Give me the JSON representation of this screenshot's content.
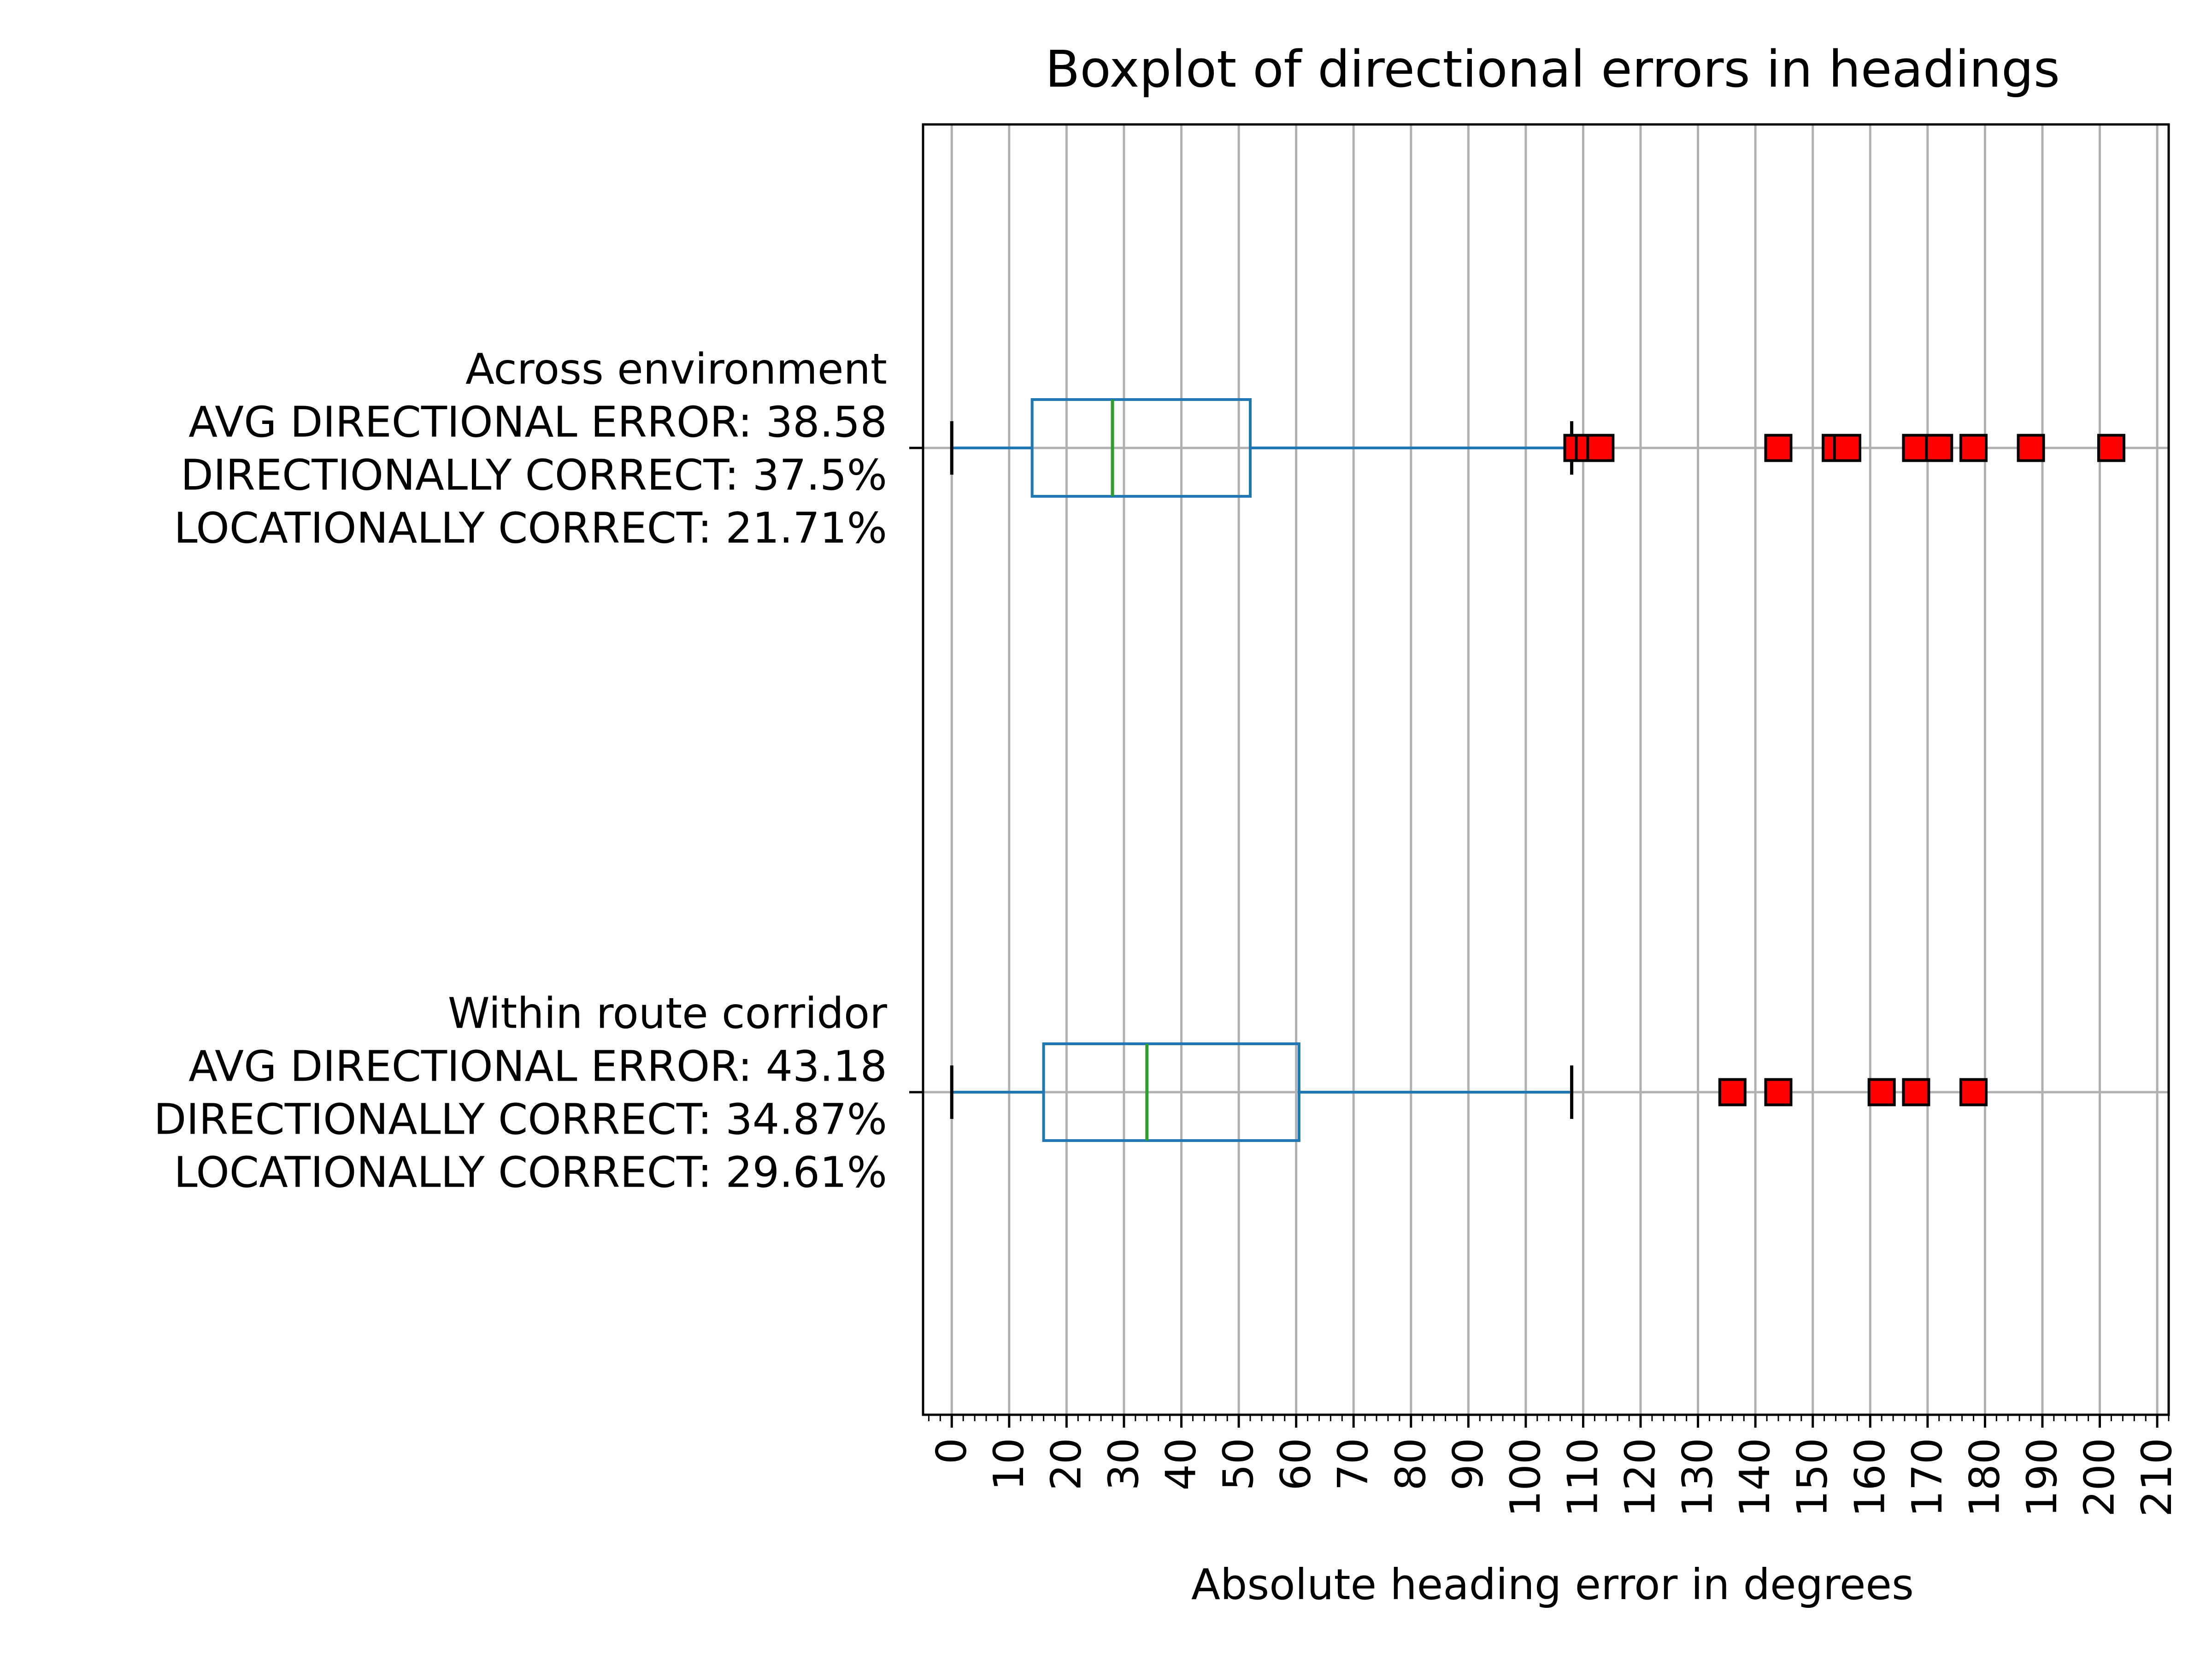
{
  "chart_data": {
    "type": "boxplot",
    "orientation": "horizontal",
    "title": "Boxplot of directional errors in headings",
    "xlabel": "Absolute heading error in degrees",
    "ylabel": "",
    "xlim": [
      -5,
      212
    ],
    "x_ticks": [
      0,
      10,
      20,
      30,
      40,
      50,
      60,
      70,
      80,
      90,
      100,
      110,
      120,
      130,
      140,
      150,
      160,
      170,
      180,
      190,
      200,
      210
    ],
    "x_minor_step": 2,
    "grid": true,
    "colors": {
      "box": "#1f77b4",
      "median": "#2ca02c",
      "outlier_fill": "#ff0000",
      "outlier_edge": "#000000",
      "grid": "#b0b0b0"
    },
    "series": [
      {
        "label_lines": [
          "Across environment",
          "AVG DIRECTIONAL ERROR: 38.58",
          "DIRECTIONALLY CORRECT: 37.5%",
          "LOCATIONALLY CORRECT: 21.71%"
        ],
        "whisker_low": 0,
        "q1": 14,
        "median": 28,
        "q3": 52,
        "whisker_high": 108,
        "outliers": [
          109,
          111,
          113,
          144,
          154,
          156,
          168,
          172,
          178,
          188,
          202
        ]
      },
      {
        "label_lines": [
          "Within route corridor",
          "AVG DIRECTIONAL ERROR: 43.18",
          "DIRECTIONALLY CORRECT: 34.87%",
          "LOCATIONALLY CORRECT: 29.61%"
        ],
        "whisker_low": 0,
        "q1": 16,
        "median": 34,
        "q3": 60.5,
        "whisker_high": 108,
        "outliers": [
          136,
          144,
          162,
          168,
          178
        ]
      }
    ]
  }
}
